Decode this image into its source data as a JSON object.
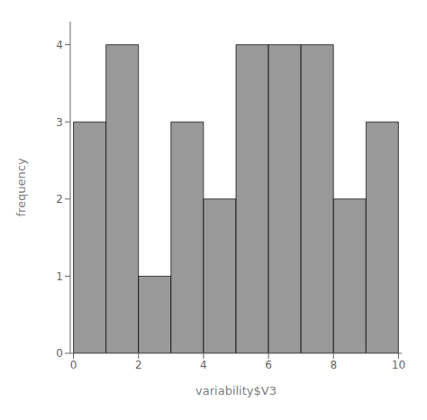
{
  "chart_data": {
    "type": "histogram",
    "bins": [
      0,
      1,
      2,
      3,
      4,
      5,
      6,
      7,
      8,
      9,
      10
    ],
    "values": [
      3,
      4,
      1,
      3,
      2,
      4,
      4,
      4,
      2,
      3
    ],
    "color": "#999999",
    "xlabel": "variability$V3",
    "ylabel": "frequency",
    "xlim": [
      -0.1,
      10.1
    ],
    "ylim": [
      0,
      4.3
    ],
    "xticks": [
      0,
      2,
      4,
      6,
      8,
      10
    ],
    "yticks": [
      0,
      1,
      2,
      3,
      4
    ]
  }
}
